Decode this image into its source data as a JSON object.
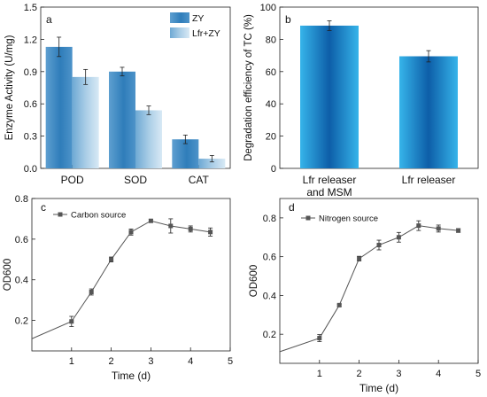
{
  "chart_data": [
    {
      "panel": "a",
      "type": "bar",
      "categories": [
        "POD",
        "SOD",
        "CAT"
      ],
      "series": [
        {
          "name": "ZY",
          "values": [
            1.13,
            0.9,
            0.27
          ],
          "errors": [
            0.09,
            0.04,
            0.04
          ],
          "color": "#3b86bf"
        },
        {
          "name": "Lfr+ZY",
          "values": [
            0.85,
            0.54,
            0.09
          ],
          "errors": [
            0.07,
            0.04,
            0.03
          ],
          "color": "#9fc7e2"
        }
      ],
      "ylabel": "Enzyme Activity (U/mg)",
      "ylim": [
        0,
        1.5
      ],
      "yticks": [
        "0.0",
        "0.3",
        "0.6",
        "0.9",
        "1.2",
        "1.5"
      ],
      "legend": "top-right",
      "grid": false
    },
    {
      "panel": "b",
      "type": "bar",
      "categories": [
        "Lfr releaser\nand MSM",
        "Lfr releaser"
      ],
      "values": [
        88.5,
        69.5
      ],
      "errors": [
        3.0,
        3.5
      ],
      "color": "#1f73b8",
      "ylabel": "Degradation efficiency of TC (%)",
      "ylim": [
        0,
        100
      ],
      "yticks": [
        "0",
        "20",
        "40",
        "60",
        "80",
        "100"
      ],
      "grid": false
    },
    {
      "panel": "c",
      "type": "line",
      "series": [
        {
          "name": "Carbon source",
          "x": [
            0,
            1,
            1.5,
            2,
            2.5,
            3,
            3.5,
            4,
            4.5
          ],
          "y": [
            0.11,
            0.195,
            0.34,
            0.5,
            0.635,
            0.69,
            0.665,
            0.65,
            0.635
          ],
          "errors": [
            0,
            0.025,
            0.015,
            0.012,
            0.015,
            0.008,
            0.035,
            0.015,
            0.02
          ]
        }
      ],
      "xlabel": "Time (d)",
      "ylabel": "OD600",
      "xlim": [
        0,
        5
      ],
      "ylim": [
        0.05,
        0.8
      ],
      "xticks": [
        "1",
        "2",
        "3",
        "4",
        "5"
      ],
      "yticks": [
        "0.2",
        "0.4",
        "0.6",
        "0.8"
      ],
      "legend": "top-left",
      "grid": false
    },
    {
      "panel": "d",
      "type": "line",
      "series": [
        {
          "name": "Nitrogen source",
          "x": [
            0,
            1,
            1.5,
            2,
            2.5,
            3,
            3.5,
            4,
            4.5
          ],
          "y": [
            0.11,
            0.18,
            0.35,
            0.59,
            0.66,
            0.7,
            0.76,
            0.745,
            0.735
          ],
          "errors": [
            0,
            0.018,
            0.005,
            0.012,
            0.025,
            0.025,
            0.025,
            0.018,
            0.01
          ]
        }
      ],
      "xlabel": "Time (d)",
      "ylabel": "OD600",
      "xlim": [
        0,
        5
      ],
      "ylim": [
        0.05,
        0.9
      ],
      "xticks": [
        "1",
        "2",
        "3",
        "4",
        "5"
      ],
      "yticks": [
        "0.2",
        "0.4",
        "0.6",
        "0.8"
      ],
      "legend": "top-left",
      "grid": false
    }
  ]
}
